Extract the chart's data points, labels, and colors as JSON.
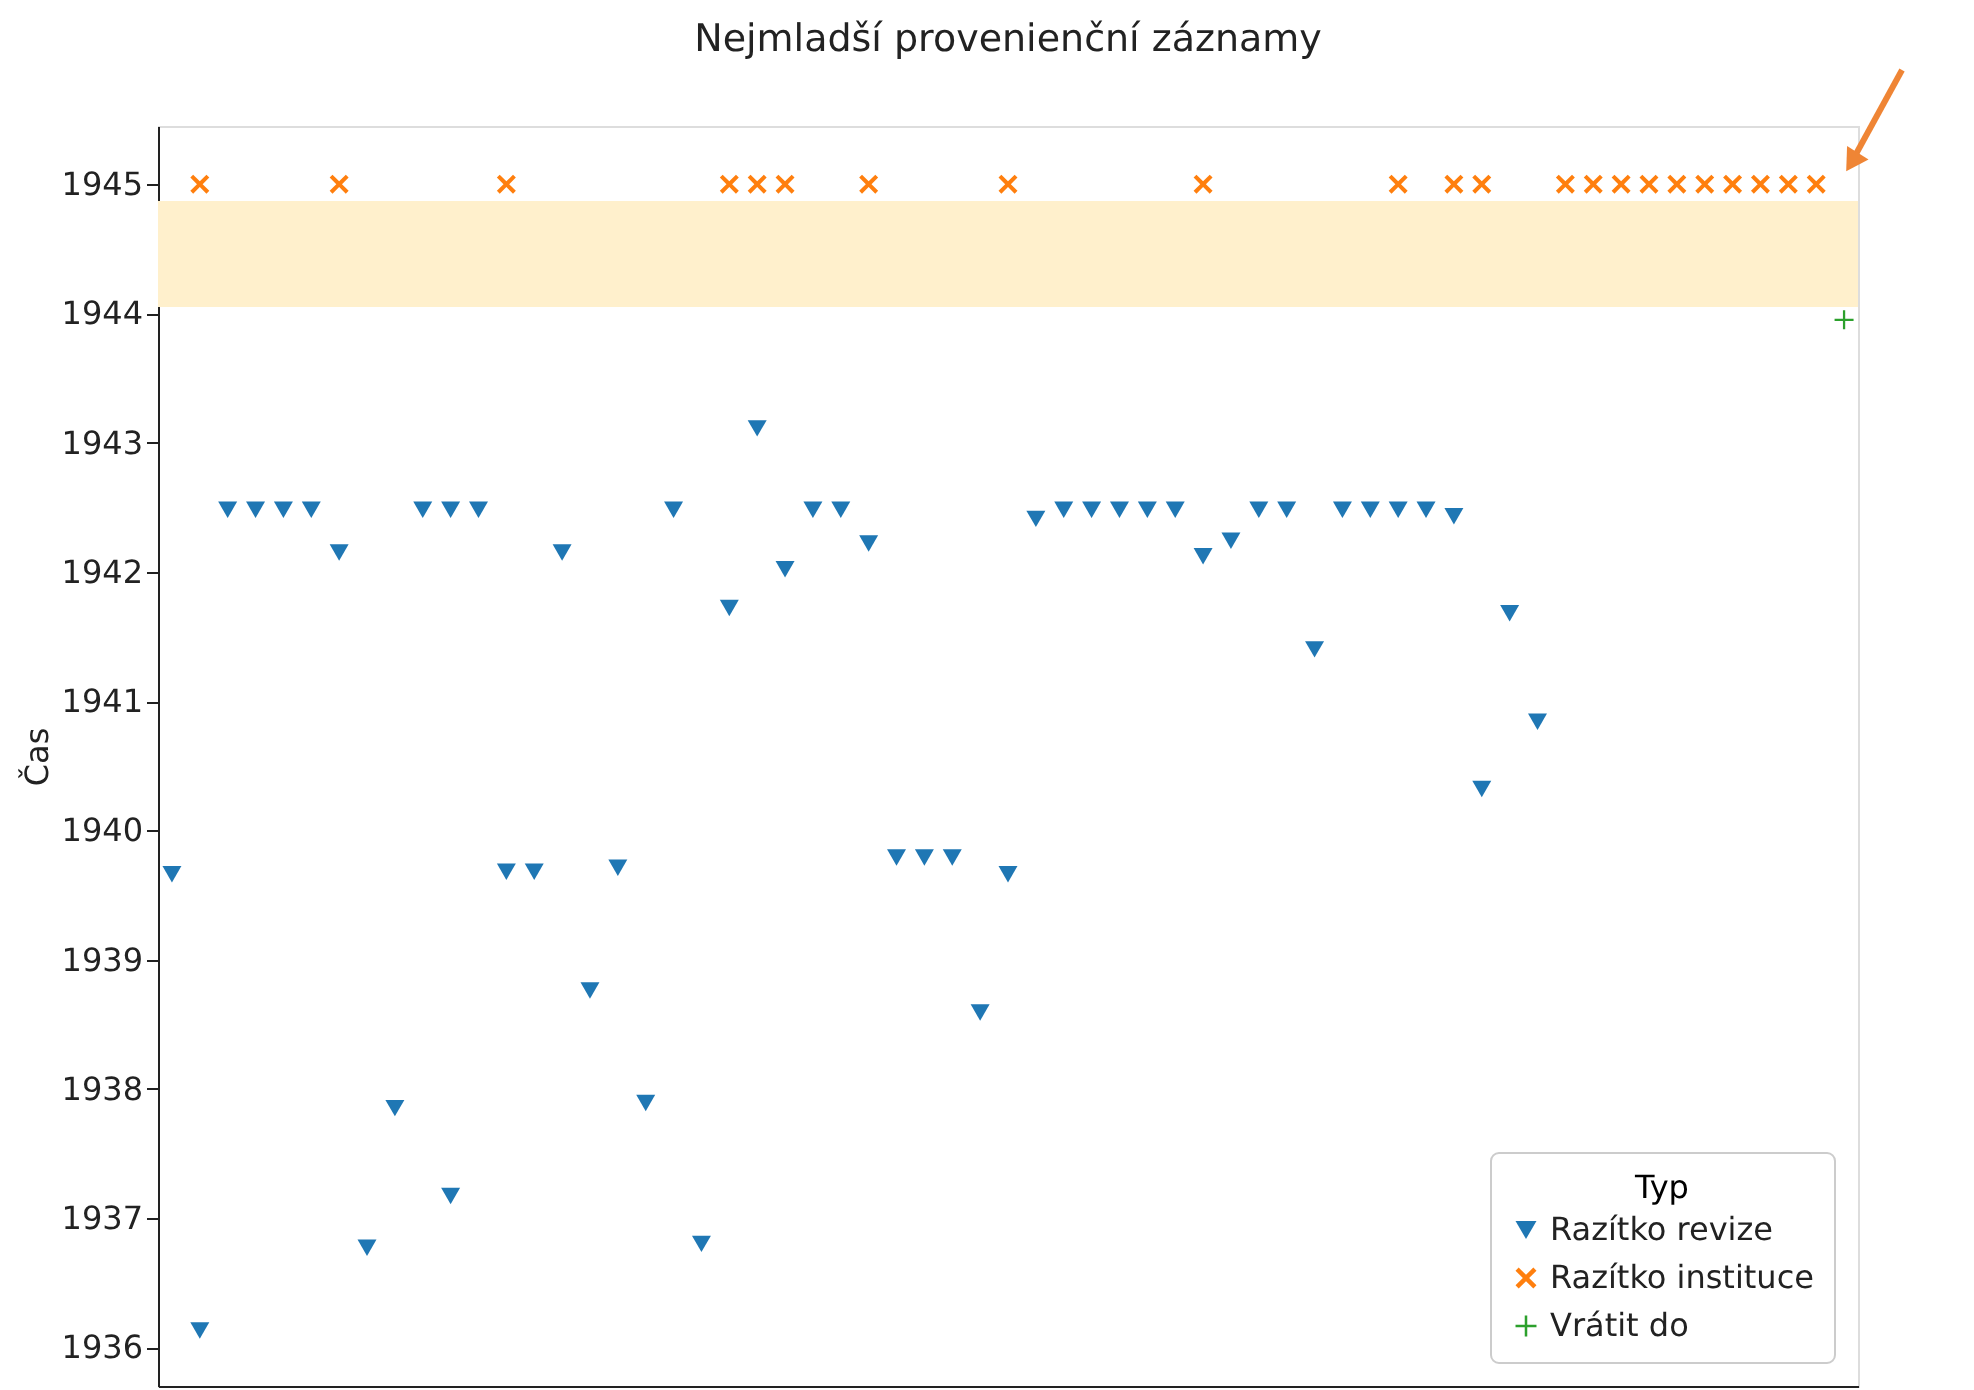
{
  "chart_data": {
    "type": "scatter",
    "title": "Nejmladší provenienční záznamy",
    "ylabel": "Čas",
    "legend_title": "Typ",
    "categories": [
      null,
      null,
      null,
      null,
      null,
      null,
      null,
      null,
      null,
      null,
      null,
      null,
      null,
      null,
      null,
      null,
      null,
      null,
      null,
      null,
      null,
      null,
      null,
      null,
      null,
      null,
      null,
      null,
      null,
      null,
      null,
      null,
      null,
      null,
      null,
      null,
      null,
      null,
      null,
      null,
      null,
      null,
      null,
      null,
      null,
      null,
      null,
      null,
      null,
      null,
      null,
      null,
      null,
      null,
      null,
      null,
      null,
      null,
      null,
      null,
      null
    ],
    "ylim": [
      1935.7,
      1945.45
    ],
    "yticks": [
      1936,
      1937,
      1938,
      1939,
      1940,
      1941,
      1942,
      1943,
      1944,
      1945
    ],
    "tick_labels": "y",
    "grid": false,
    "legend": "bottom right",
    "bands": [
      {
        "axis": "y",
        "from": 1944.05,
        "to": 1944.87,
        "color": "#fff0cc"
      }
    ],
    "series": [
      {
        "name": "Razítko revize",
        "color": "#1f77b4",
        "marker": "triangle-down",
        "values": [
          1939.66,
          1936.13,
          1942.48,
          1942.48,
          1942.48,
          1942.48,
          1942.15,
          1936.77,
          1937.85,
          1942.48,
          1942.48,
          1942.48,
          1939.68,
          1939.68,
          1942.15,
          1938.76,
          1939.71,
          1937.89,
          1942.48,
          1936.8,
          1941.72,
          1943.11,
          1942.02,
          1942.48,
          1942.48,
          1942.22,
          1939.79,
          1939.79,
          1939.79,
          1938.59,
          1939.66,
          1942.41,
          1942.48,
          1942.48,
          1942.48,
          1942.48,
          1942.48,
          1942.12,
          1942.24,
          1942.48,
          1942.48,
          1941.4,
          1942.48,
          1942.48,
          1942.48,
          1942.48,
          1942.43,
          1940.32,
          1941.68,
          1940.84,
          null,
          null,
          null,
          null,
          null,
          null,
          null,
          null,
          null,
          null,
          null
        ]
      },
      {
        "color": "#1f77b4",
        "marker": "triangle-down",
        "values": [
          null,
          null,
          null,
          null,
          null,
          null,
          null,
          null,
          null,
          null,
          1937.17,
          null,
          null,
          null,
          null,
          null,
          null,
          null,
          null,
          null,
          null,
          null,
          null,
          null,
          null,
          null,
          null,
          null,
          null,
          null,
          null,
          null,
          null,
          null,
          null,
          null,
          null,
          null,
          null,
          null,
          null,
          null,
          null,
          null,
          null,
          null,
          null,
          null,
          null,
          null,
          null,
          null,
          null,
          null,
          null,
          null,
          null,
          null,
          null,
          null,
          null
        ]
      },
      {
        "name": "Razítko instituce",
        "color": "#ff7f0e",
        "marker": "x",
        "values": [
          null,
          1945,
          null,
          null,
          null,
          null,
          1945,
          null,
          null,
          null,
          null,
          null,
          1945,
          null,
          null,
          null,
          null,
          null,
          null,
          null,
          1945,
          1945,
          1945,
          null,
          null,
          1945,
          null,
          null,
          null,
          null,
          1945,
          null,
          null,
          null,
          null,
          null,
          null,
          1945,
          null,
          null,
          null,
          null,
          null,
          null,
          1945,
          null,
          1945,
          1945,
          null,
          null,
          1945,
          1945,
          1945,
          1945,
          1945,
          1945,
          1945,
          1945,
          1945,
          1945,
          null
        ]
      },
      {
        "name": "Vrátit do",
        "color": "#2ca02c",
        "marker": "cross",
        "values": [
          null,
          null,
          null,
          null,
          null,
          null,
          null,
          null,
          null,
          null,
          null,
          null,
          null,
          null,
          null,
          null,
          null,
          null,
          null,
          null,
          null,
          null,
          null,
          null,
          null,
          null,
          null,
          null,
          null,
          null,
          null,
          null,
          null,
          null,
          null,
          null,
          null,
          null,
          null,
          null,
          null,
          null,
          null,
          null,
          null,
          null,
          null,
          null,
          null,
          null,
          null,
          null,
          null,
          null,
          null,
          null,
          null,
          null,
          null,
          null,
          1943.95
        ]
      }
    ]
  }
}
